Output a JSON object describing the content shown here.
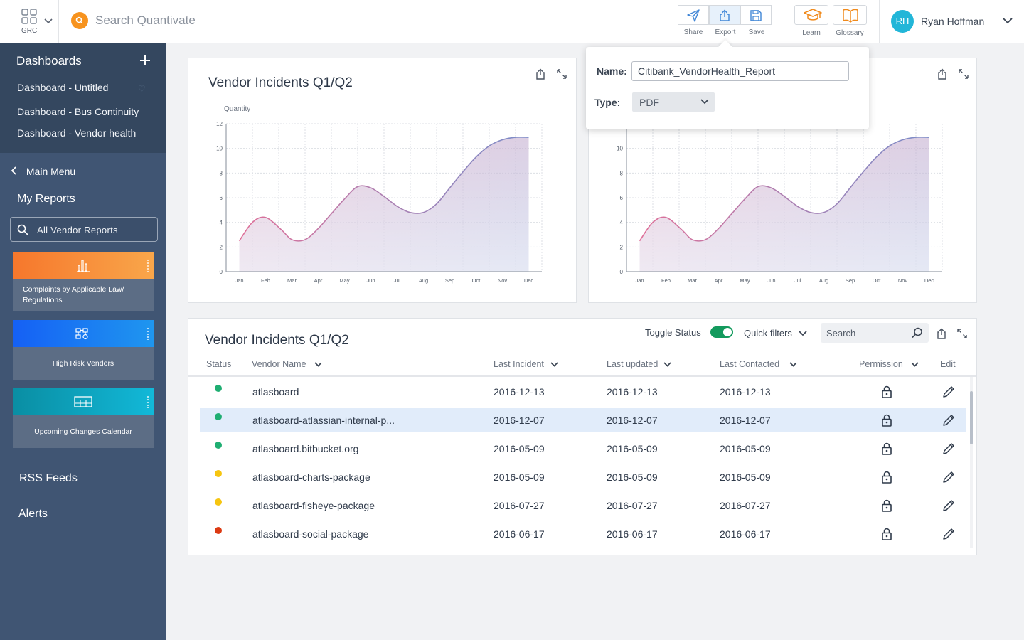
{
  "topbar": {
    "app_label": "GRC",
    "search_placeholder": "Search Quantivate",
    "actions": [
      {
        "label": "Share",
        "icon": "send-icon"
      },
      {
        "label": "Export",
        "icon": "upload-icon"
      },
      {
        "label": "Save",
        "icon": "floppy-icon"
      }
    ],
    "learn_label": "Learn",
    "glossary_label": "Glossary",
    "user_initials": "RH",
    "user_name": "Ryan Hoffman"
  },
  "sidebar": {
    "dashboards_title": "Dashboards",
    "dashboards": [
      "Dashboard - Untitled",
      "Dashboard - Bus Continuity",
      "Dashboard - Vendor health"
    ],
    "back_label": "Main Menu",
    "my_reports": "My Reports",
    "search_value": "All Vendor Reports",
    "tiles": [
      {
        "label": "Complaints by Applicable Law/ Regulations",
        "color_start": "#f6772c",
        "color_end": "#f9a64a",
        "icon": "bar-chart-icon"
      },
      {
        "label": "High Risk Vendors",
        "color_start": "#1560f5",
        "color_end": "#1f96ef",
        "icon": "network-icon"
      },
      {
        "label": "Upcoming Changes Calendar",
        "color_start": "#0a8ea3",
        "color_end": "#12b8d8",
        "icon": "table-icon"
      }
    ],
    "rss_label": "RSS Feeds",
    "alerts_label": "Alerts"
  },
  "export_popover": {
    "name_label": "Name:",
    "name_value": "Citibank_VendorHealth_Report",
    "type_label": "Type:",
    "type_value": "PDF"
  },
  "chart_card_left": {
    "title": "Vendor Incidents Q1/Q2"
  },
  "chart_data": [
    {
      "type": "area",
      "ylabel": "Quantity",
      "categories": [
        "Jan",
        "Feb",
        "Mar",
        "Apr",
        "May",
        "Jun",
        "Jul",
        "Aug",
        "Sep",
        "Oct",
        "Nov",
        "Dec"
      ],
      "x": [
        0.0,
        0.5,
        1.0,
        1.6,
        2.0,
        2.5,
        3.0,
        3.5,
        4.0,
        4.5,
        5.0,
        5.5,
        6.0,
        6.5,
        7.0,
        7.5,
        8.0,
        8.5,
        9.0,
        9.5,
        10.0,
        10.5,
        11.0
      ],
      "values": [
        2.5,
        4.0,
        4.4,
        3.4,
        2.6,
        2.6,
        3.5,
        4.7,
        5.9,
        6.9,
        6.8,
        6.1,
        5.3,
        4.8,
        4.8,
        5.5,
        6.8,
        8.1,
        9.3,
        10.2,
        10.7,
        10.9,
        10.9
      ],
      "ylim": [
        0,
        12
      ],
      "yticks": [
        0,
        2,
        4,
        6,
        8,
        10,
        12
      ],
      "grid": true,
      "colors": {
        "line_start": "#df6f98",
        "line_end": "#7a8dc9"
      }
    },
    {
      "type": "area",
      "categories": [
        "Jan",
        "Feb",
        "Mar",
        "Apr",
        "May",
        "Jun",
        "Jul",
        "Aug",
        "Sep",
        "Oct",
        "Nov",
        "Dec"
      ],
      "x": [
        0.0,
        0.5,
        1.0,
        1.6,
        2.0,
        2.5,
        3.0,
        3.5,
        4.0,
        4.5,
        5.0,
        5.5,
        6.0,
        6.5,
        7.0,
        7.5,
        8.0,
        8.5,
        9.0,
        9.5,
        10.0,
        10.5,
        11.0
      ],
      "values": [
        2.5,
        4.0,
        4.4,
        3.4,
        2.6,
        2.6,
        3.5,
        4.7,
        5.9,
        6.9,
        6.8,
        6.1,
        5.3,
        4.8,
        4.8,
        5.5,
        6.8,
        8.1,
        9.3,
        10.2,
        10.7,
        10.9,
        10.9
      ],
      "ylim": [
        0,
        12
      ],
      "yticks": [
        0,
        2,
        4,
        6,
        8,
        10
      ],
      "grid": true,
      "colors": {
        "line_start": "#df6f98",
        "line_end": "#7a8dc9"
      }
    }
  ],
  "table_card": {
    "title": "Vendor Incidents Q1/Q2",
    "toggle_label": "Toggle Status",
    "toggle_on": true,
    "quick_filters": "Quick filters",
    "search_placeholder": "Search",
    "columns": [
      "Status",
      "Vendor Name",
      "Last Incident",
      "Last updated",
      "Last Contacted",
      "Permission",
      "Edit"
    ],
    "rows": [
      {
        "status": "#1fae72",
        "name": "atlasboard",
        "last_incident": "2016-12-13",
        "last_updated": "2016-12-13",
        "last_contacted": "2016-12-13"
      },
      {
        "status": "#1fae72",
        "name": "atlasboard-atlassian-internal-p...",
        "last_incident": "2016-12-07",
        "last_updated": "2016-12-07",
        "last_contacted": "2016-12-07",
        "selected": true
      },
      {
        "status": "#1fae72",
        "name": "atlasboard.bitbucket.org",
        "last_incident": "2016-05-09",
        "last_updated": "2016-05-09",
        "last_contacted": "2016-05-09"
      },
      {
        "status": "#f6c510",
        "name": "atlasboard-charts-package",
        "last_incident": "2016-05-09",
        "last_updated": "2016-05-09",
        "last_contacted": "2016-05-09"
      },
      {
        "status": "#f6c510",
        "name": "atlasboard-fisheye-package",
        "last_incident": "2016-07-27",
        "last_updated": "2016-07-27",
        "last_contacted": "2016-07-27"
      },
      {
        "status": "#dc3a12",
        "name": "atlasboard-social-package",
        "last_incident": "2016-06-17",
        "last_updated": "2016-06-17",
        "last_contacted": "2016-06-17"
      }
    ]
  }
}
